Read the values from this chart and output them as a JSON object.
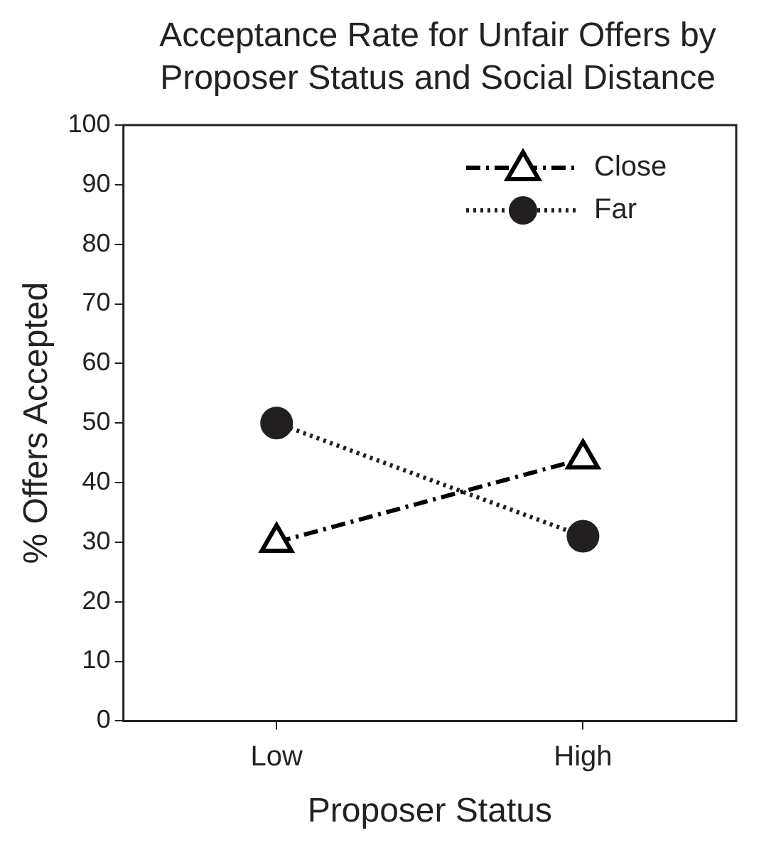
{
  "chart_data": {
    "type": "line",
    "title": "Acceptance Rate for Unfair Offers by Proposer Status and Social Distance",
    "xlabel": "Proposer Status",
    "ylabel": "% Offers Accepted",
    "categories": [
      "Low",
      "High"
    ],
    "series": [
      {
        "name": "Close",
        "color": "#000000",
        "values": [
          30,
          44
        ],
        "marker": "triangle",
        "line_style": "dashed"
      },
      {
        "name": "Far",
        "color": "#231f20",
        "values": [
          50,
          31
        ],
        "marker": "circle",
        "line_style": "dotted"
      }
    ],
    "ylim": [
      0,
      100
    ],
    "yticks": [
      0,
      10,
      20,
      30,
      40,
      50,
      60,
      70,
      80,
      90,
      100
    ],
    "grid": false,
    "legend": "top right"
  }
}
